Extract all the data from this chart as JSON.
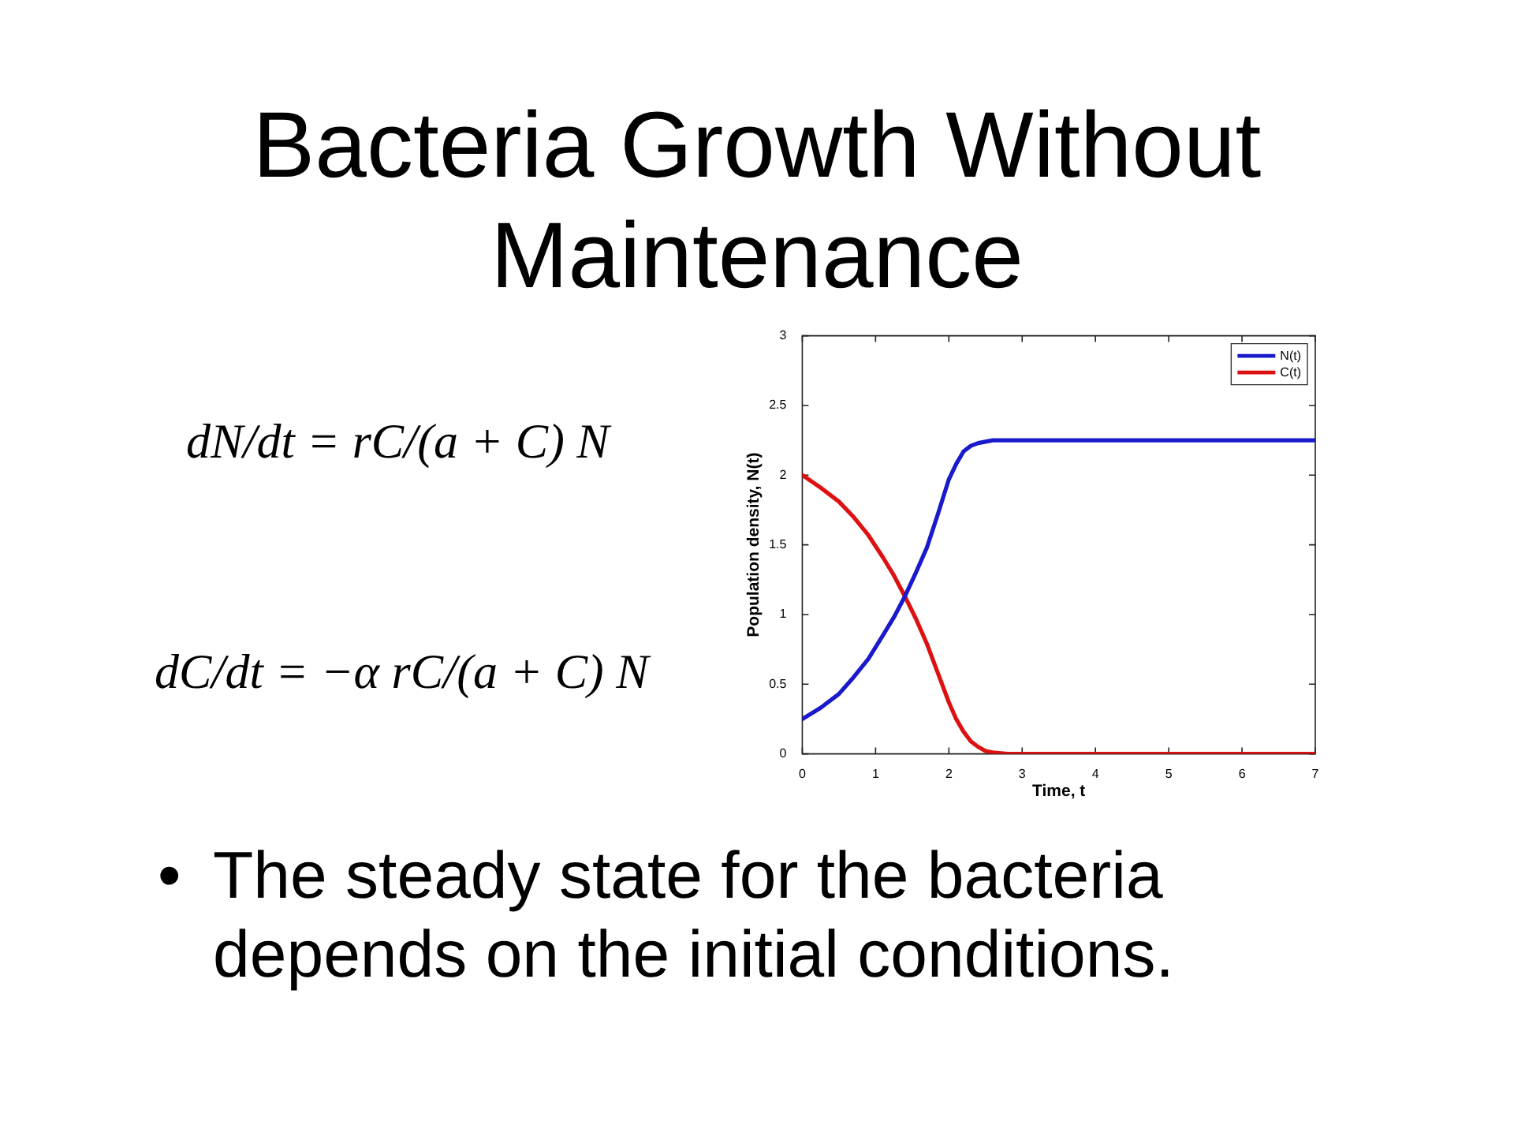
{
  "chart_data": {
    "type": "line",
    "title": "Bacteria Growth Without Maintenance",
    "xlabel": "Time, t",
    "ylabel": "Population density, N(t)",
    "x": [
      0,
      0.25,
      0.5,
      0.7,
      0.9,
      1.1,
      1.25,
      1.4,
      1.55,
      1.7,
      1.85,
      2.0,
      2.1,
      2.2,
      2.3,
      2.4,
      2.5,
      2.6,
      2.8,
      3,
      4,
      5,
      6,
      7
    ],
    "series": [
      {
        "name": "N(t)",
        "color": "#1a1acc",
        "values": [
          0.25,
          0.33,
          0.43,
          0.55,
          0.68,
          0.85,
          0.98,
          1.13,
          1.3,
          1.48,
          1.72,
          1.97,
          2.08,
          2.17,
          2.21,
          2.23,
          2.24,
          2.25,
          2.25,
          2.25,
          2.25,
          2.25,
          2.25,
          2.25
        ]
      },
      {
        "name": "C(t)",
        "color": "#dd1111",
        "values": [
          2.0,
          1.91,
          1.81,
          1.7,
          1.57,
          1.41,
          1.28,
          1.13,
          0.97,
          0.79,
          0.58,
          0.37,
          0.25,
          0.16,
          0.09,
          0.05,
          0.02,
          0.01,
          0,
          0,
          0,
          0,
          0,
          0
        ]
      }
    ],
    "xlim": [
      0,
      7
    ],
    "xticks": [
      0,
      1,
      2,
      3,
      4,
      5,
      6,
      7
    ],
    "ylim": [
      0,
      3
    ],
    "yticks": [
      0,
      0.5,
      1,
      1.5,
      2,
      2.5,
      3
    ],
    "legend": "top right",
    "annotations": [
      "dN/dt = rC/(a + C) N",
      "dC/dt = −α rC/(a + C) N",
      "• The steady state for the bacteria depends on the initial conditions."
    ]
  }
}
